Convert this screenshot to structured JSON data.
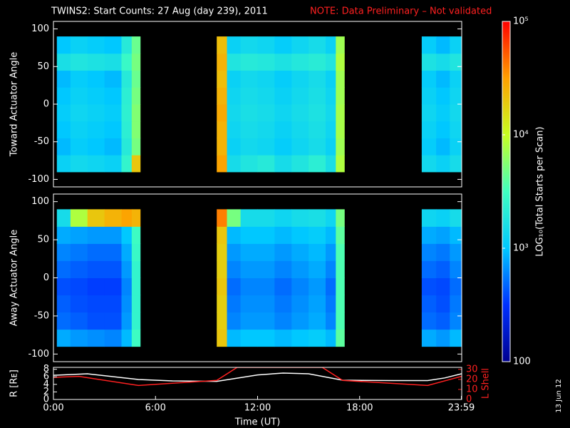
{
  "page": {
    "stamp": "13 Jun 12"
  },
  "chart_data": [
    {
      "type": "heatmap",
      "title": "TWINS2: Start Counts: 27 Aug (day 239), 2011",
      "subtitle": "NOTE: Data Preliminary – Not validated",
      "ylabel": "Toward Actuator Angle",
      "xlim": [
        0,
        24
      ],
      "ylim": [
        -110,
        110
      ],
      "yticks": [
        -100,
        -50,
        0,
        50,
        100
      ],
      "xbins": [
        0.2,
        1,
        2,
        3,
        4,
        4.6,
        5.1,
        9.6,
        10.2,
        11,
        12,
        13,
        14,
        15,
        16,
        16.6,
        17.1,
        21.65,
        22.5,
        23.3,
        24
      ],
      "ybins": [
        -90,
        -67.5,
        -45,
        -22.5,
        0,
        22.5,
        45,
        67.5,
        90
      ],
      "values": [
        [
          1200,
          1400,
          1300,
          1200,
          2500,
          20000,
          null,
          30000,
          1500,
          1800,
          2000,
          1500,
          1800,
          2200,
          1600,
          8000,
          null,
          1400,
          1200,
          1500
        ],
        [
          900,
          1100,
          1000,
          900,
          2000,
          5000,
          null,
          25000,
          1200,
          1400,
          1300,
          1100,
          1300,
          1500,
          1200,
          7000,
          null,
          1100,
          900,
          1200
        ],
        [
          1000,
          1200,
          1100,
          1000,
          2200,
          5500,
          null,
          25000,
          1300,
          1500,
          1400,
          1200,
          1400,
          1600,
          1300,
          7500,
          null,
          1200,
          1000,
          1300
        ],
        [
          1100,
          1300,
          1200,
          1100,
          2300,
          5500,
          null,
          28000,
          1400,
          1600,
          1500,
          1300,
          1500,
          1700,
          1400,
          7500,
          null,
          1300,
          1100,
          1400
        ],
        [
          1000,
          1200,
          1100,
          1000,
          2200,
          5000,
          null,
          25000,
          1300,
          1500,
          1400,
          1200,
          1400,
          1600,
          1300,
          7000,
          null,
          1200,
          1000,
          1300
        ],
        [
          900,
          1100,
          1000,
          900,
          2000,
          4500,
          null,
          22000,
          1200,
          1400,
          1300,
          1100,
          1300,
          1500,
          1200,
          7000,
          null,
          1100,
          900,
          1200
        ],
        [
          1600,
          1800,
          1700,
          1600,
          2800,
          5000,
          null,
          25000,
          1800,
          2000,
          1900,
          1700,
          1900,
          2100,
          1800,
          8000,
          null,
          1700,
          1500,
          1800
        ],
        [
          1000,
          1200,
          1100,
          1000,
          2000,
          4500,
          null,
          22000,
          1200,
          1400,
          1300,
          1100,
          1300,
          1500,
          1200,
          7000,
          null,
          1100,
          900,
          1200
        ]
      ],
      "log_color": true,
      "zlim": [
        100,
        100000
      ],
      "zticks": [
        {
          "value": 100,
          "label": "100"
        },
        {
          "value": 1000,
          "label": "10³"
        },
        {
          "value": 10000,
          "label": "10⁴"
        },
        {
          "value": 100000,
          "label": "10⁵"
        }
      ],
      "colorbar_label": "LOG₁₀(Total Starts per Scan)",
      "colorscale": [
        "#000090",
        "#0030ff",
        "#00c8ff",
        "#40ffc0",
        "#c8ff20",
        "#ffa000",
        "#ff0000"
      ]
    },
    {
      "type": "heatmap",
      "ylabel": "Away Actuator Angle",
      "xlim": [
        0,
        24
      ],
      "ylim": [
        -110,
        110
      ],
      "yticks": [
        -100,
        -50,
        0,
        50,
        100
      ],
      "xbins": [
        0.2,
        1,
        2,
        3,
        4,
        4.6,
        5.1,
        9.6,
        10.2,
        11,
        12,
        13,
        14,
        15,
        16,
        16.6,
        17.1,
        21.65,
        22.5,
        23.3,
        24
      ],
      "ybins": [
        -90,
        -67.5,
        -45,
        -22.5,
        0,
        22.5,
        45,
        67.5,
        90
      ],
      "values": [
        [
          800,
          700,
          650,
          600,
          900,
          3000,
          null,
          20000,
          900,
          1000,
          1000,
          900,
          1000,
          1100,
          900,
          4000,
          null,
          800,
          700,
          900
        ],
        [
          500,
          450,
          400,
          400,
          700,
          2500,
          null,
          18000,
          600,
          700,
          700,
          600,
          700,
          800,
          600,
          3500,
          null,
          500,
          450,
          600
        ],
        [
          450,
          400,
          380,
          380,
          650,
          2500,
          null,
          18000,
          550,
          650,
          650,
          550,
          650,
          750,
          550,
          3500,
          null,
          450,
          400,
          550
        ],
        [
          400,
          380,
          350,
          350,
          600,
          2500,
          null,
          20000,
          500,
          600,
          600,
          500,
          600,
          700,
          500,
          3500,
          null,
          400,
          380,
          500
        ],
        [
          500,
          450,
          420,
          420,
          700,
          2500,
          null,
          18000,
          600,
          700,
          700,
          600,
          700,
          800,
          600,
          3500,
          null,
          500,
          450,
          600
        ],
        [
          600,
          550,
          500,
          500,
          800,
          2800,
          null,
          18000,
          700,
          800,
          800,
          700,
          800,
          900,
          700,
          3500,
          null,
          600,
          550,
          700
        ],
        [
          800,
          750,
          700,
          700,
          1000,
          3000,
          null,
          20000,
          900,
          1000,
          1000,
          900,
          1000,
          1100,
          900,
          4000,
          null,
          800,
          750,
          900
        ],
        [
          1500,
          8000,
          20000,
          25000,
          30000,
          25000,
          null,
          40000,
          5000,
          1500,
          1500,
          1300,
          1500,
          1600,
          1300,
          5000,
          null,
          1300,
          1200,
          1500
        ]
      ]
    },
    {
      "type": "line",
      "xlabel": "Time (UT)",
      "ylabel": "R [Rᴇ]",
      "y2label": "L Shell",
      "xlim": [
        0,
        24
      ],
      "xticks": [
        {
          "value": 0,
          "label": "0:00"
        },
        {
          "value": 6,
          "label": "6:00"
        },
        {
          "value": 12,
          "label": "12:00"
        },
        {
          "value": 18,
          "label": "18:00"
        },
        {
          "value": 23.98,
          "label": "23:59"
        }
      ],
      "ylim": [
        0,
        8.5
      ],
      "yticks": [
        0,
        2,
        4,
        6,
        8
      ],
      "y2lim": [
        0,
        32
      ],
      "y2ticks": [
        0,
        10,
        20,
        30
      ],
      "series": [
        {
          "color": "#ffffff",
          "x": [
            0,
            2,
            5,
            7,
            9.6,
            12,
            13.5,
            15,
            17,
            20,
            22,
            23,
            23.98
          ],
          "values": [
            6.4,
            6.8,
            5.3,
            4.9,
            4.8,
            6.5,
            7.0,
            6.8,
            5.1,
            5,
            5,
            5.7,
            6.8
          ]
        },
        {
          "axis": "y2",
          "color": "#ff2020",
          "x": [
            0,
            1.5,
            5,
            9.6,
            10.8,
            15.8,
            17,
            22,
            23.98
          ],
          "values": [
            22,
            23,
            14,
            19,
            32,
            32,
            19,
            14,
            23
          ]
        }
      ]
    }
  ]
}
